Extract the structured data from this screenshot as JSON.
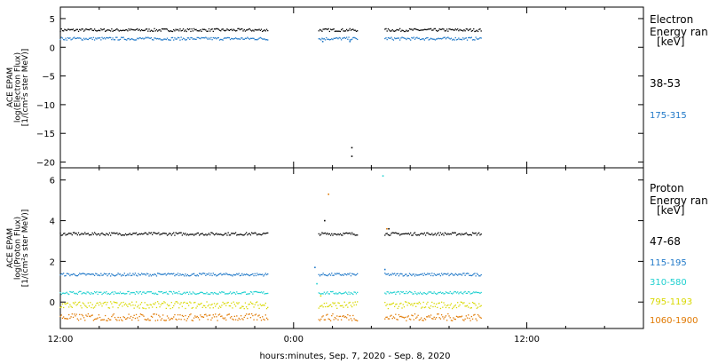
{
  "chart_data": [
    {
      "type": "scatter",
      "title": "",
      "xlabel": "hours:minutes, Sep.  7, 2020 - Sep.  8, 2020",
      "ylabel_lines": [
        "ACE EPAM",
        "log(Electron Flux)",
        "[1/(cm²s ster MeV)]"
      ],
      "ylim": [
        -21,
        7
      ],
      "yticks": [
        -20,
        -15,
        -10,
        -5,
        0,
        5
      ],
      "xlim_hours": [
        0,
        30
      ],
      "legend_title_lines": [
        "Electron",
        "Energy ran",
        "[keV]"
      ],
      "series": [
        {
          "name": "38-53",
          "color": "#000000",
          "level": 3.0,
          "segments": [
            [
              0,
              10.7
            ],
            [
              13.3,
              15.3
            ],
            [
              16.7,
              21.7
            ]
          ],
          "outliers": [
            [
              15.0,
              -17.5
            ],
            [
              15.0,
              -19.0
            ]
          ]
        },
        {
          "name": "175-315",
          "color": "#1f78c8",
          "level": 1.5,
          "segments": [
            [
              0,
              10.7
            ],
            [
              13.3,
              15.3
            ],
            [
              16.7,
              21.7
            ]
          ],
          "outliers": [
            [
              13.5,
              1.0
            ],
            [
              14.9,
              1.0
            ]
          ]
        }
      ]
    },
    {
      "type": "scatter",
      "title": "",
      "xlabel": "hours:minutes, Sep.  7, 2020 - Sep.  8, 2020",
      "ylabel_lines": [
        "ACE EPAM",
        "log(Proton Flux)",
        "[1/(cm²s ster MeV)]"
      ],
      "ylim": [
        -1.3,
        6.6
      ],
      "yticks": [
        0,
        2,
        4,
        6
      ],
      "xlim_hours": [
        0,
        30
      ],
      "legend_title_lines": [
        "Proton",
        "Energy ran",
        "[keV]"
      ],
      "series": [
        {
          "name": "47-68",
          "color": "#000000",
          "level": 3.35,
          "segments": [
            [
              0,
              10.7
            ],
            [
              13.3,
              15.3
            ],
            [
              16.7,
              21.7
            ]
          ],
          "outliers": [
            [
              13.6,
              4.0
            ],
            [
              16.9,
              3.6
            ]
          ]
        },
        {
          "name": "115-195",
          "color": "#1f78c8",
          "level": 1.35,
          "segments": [
            [
              0,
              10.7
            ],
            [
              13.3,
              15.3
            ],
            [
              16.7,
              21.7
            ]
          ],
          "outliers": [
            [
              13.1,
              1.7
            ],
            [
              16.7,
              1.6
            ]
          ]
        },
        {
          "name": "310-580",
          "color": "#20d0d0",
          "level": 0.45,
          "segments": [
            [
              0,
              10.7
            ],
            [
              13.3,
              15.3
            ],
            [
              16.7,
              21.7
            ]
          ],
          "outliers": [
            [
              16.6,
              6.2
            ],
            [
              13.2,
              0.9
            ]
          ]
        },
        {
          "name": "795-1193",
          "color": "#d8d800",
          "level": -0.15,
          "segments": [
            [
              0,
              10.7
            ],
            [
              13.3,
              15.3
            ],
            [
              16.7,
              21.7
            ]
          ],
          "outliers": [
            [
              13.4,
              0.3
            ]
          ]
        },
        {
          "name": "1060-1900",
          "color": "#e07800",
          "level": -0.75,
          "segments": [
            [
              0,
              10.7
            ],
            [
              13.3,
              15.3
            ],
            [
              16.7,
              21.7
            ]
          ],
          "outliers": [
            [
              13.8,
              5.3
            ],
            [
              16.8,
              3.6
            ]
          ]
        }
      ]
    }
  ],
  "x_tick_hours": [
    0,
    12,
    24
  ],
  "x_minor_tick_hours": [
    2,
    4,
    6,
    8,
    10,
    14,
    16,
    18,
    20,
    22,
    26,
    28
  ],
  "x_tick_labels": [
    "12:00",
    "0:00",
    "12:00"
  ]
}
